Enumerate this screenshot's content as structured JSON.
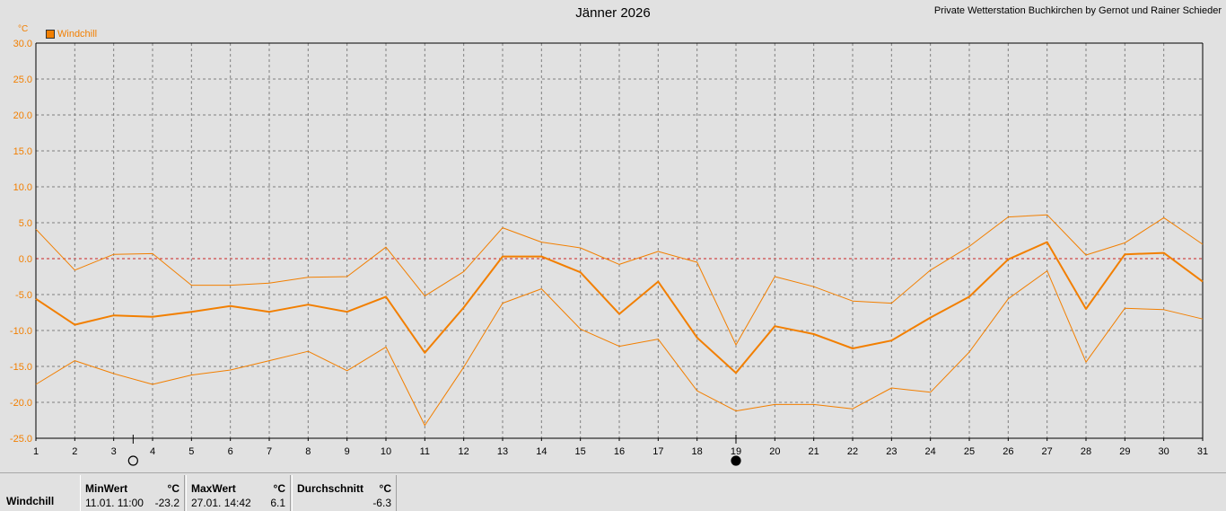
{
  "title": "Jänner 2026",
  "station": "Private Wetterstation Buchkirchen by Gernot und Rainer Schieder",
  "unit": "°C",
  "legend_label": "Windchill",
  "colors": {
    "series": "#f27f00",
    "zero_line": "#cc2222",
    "grid": "#808080"
  },
  "moon_phases": [
    {
      "day": 3.5,
      "phase": "full-moon-icon"
    },
    {
      "day": 19,
      "phase": "new-moon-icon"
    }
  ],
  "chart_data": {
    "type": "line",
    "title": "Jänner 2026",
    "x": [
      1,
      2,
      3,
      4,
      5,
      6,
      7,
      8,
      9,
      10,
      11,
      12,
      13,
      14,
      15,
      16,
      17,
      18,
      19,
      20,
      21,
      22,
      23,
      24,
      25,
      26,
      27,
      28,
      29,
      30,
      31
    ],
    "x_ticks": [
      "1",
      "2",
      "3",
      "4",
      "5",
      "6",
      "7",
      "8",
      "9",
      "10",
      "11",
      "12",
      "13",
      "14",
      "15",
      "16",
      "17",
      "18",
      "19",
      "20",
      "21",
      "22",
      "23",
      "24",
      "25",
      "26",
      "27",
      "28",
      "29",
      "30",
      "31"
    ],
    "y_ticks": [
      "30.0",
      "25.0",
      "20.0",
      "15.0",
      "10.0",
      "5.0",
      "0.0",
      "-5.0",
      "-10.0",
      "-15.0",
      "-20.0",
      "-25.0"
    ],
    "ylim": [
      -25,
      30
    ],
    "xlim": [
      1,
      31
    ],
    "ylabel": "°C",
    "grid": true,
    "legend_position": "top-left",
    "series": [
      {
        "name": "Windchill",
        "role": "mean",
        "values": [
          -5.6,
          -9.2,
          -7.9,
          -8.1,
          -7.4,
          -6.6,
          -7.4,
          -6.4,
          -7.4,
          -5.3,
          -13.1,
          -6.8,
          0.3,
          0.3,
          -1.9,
          -7.7,
          -3.2,
          -11.0,
          -15.9,
          -9.4,
          -10.5,
          -12.5,
          -11.4,
          -8.2,
          -5.3,
          -0.1,
          2.3,
          -7.0,
          0.6,
          0.8,
          -3.2
        ]
      },
      {
        "name": "",
        "role": "max",
        "values": [
          4.1,
          -1.6,
          0.6,
          0.7,
          -3.7,
          -3.7,
          -3.4,
          -2.6,
          -2.5,
          1.6,
          -5.2,
          -1.8,
          4.3,
          2.3,
          1.5,
          -0.8,
          1.0,
          -0.5,
          -12.0,
          -2.5,
          -3.9,
          -5.9,
          -6.2,
          -1.6,
          1.7,
          5.8,
          6.1,
          0.5,
          2.2,
          5.7,
          2.0
        ]
      },
      {
        "name": "",
        "role": "min",
        "values": [
          -17.5,
          -14.2,
          -16.0,
          -17.5,
          -16.2,
          -15.5,
          -14.2,
          -12.9,
          -15.6,
          -12.3,
          -23.2,
          -15.1,
          -6.2,
          -4.2,
          -9.8,
          -12.2,
          -11.2,
          -18.4,
          -21.2,
          -20.3,
          -20.3,
          -20.9,
          -18.0,
          -18.6,
          -13.0,
          -5.6,
          -1.7,
          -14.4,
          -6.9,
          -7.1,
          -8.4
        ]
      }
    ]
  },
  "stats": {
    "row_label": "Windchill",
    "min": {
      "header": "MinWert",
      "unit": "°C",
      "date": "11.01.  11:00",
      "value": "-23.2"
    },
    "max": {
      "header": "MaxWert",
      "unit": "°C",
      "date": "27.01.  14:42",
      "value": "6.1"
    },
    "avg": {
      "header": "Durchschnitt",
      "unit": "°C",
      "value": "-6.3"
    }
  }
}
